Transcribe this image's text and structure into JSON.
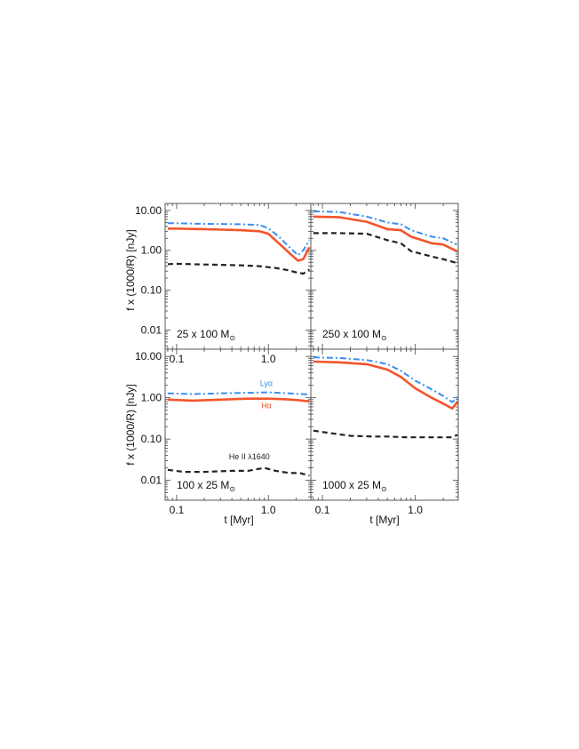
{
  "colors": {
    "lya": "#3a8ef0",
    "ha": "#f2552b",
    "he": "#222222",
    "frame": "#555555"
  },
  "labels": {
    "ylabel": "f x (1000/R) [nJy]",
    "xlabel": "t [Myr]"
  },
  "chart_data": [
    {
      "type": "line",
      "panel_label": "25 x 100 M",
      "panel_label_sub": "⊙",
      "xscale": "log",
      "yscale": "log",
      "xlim": [
        0.075,
        2.9
      ],
      "ylim": [
        0.0033,
        15
      ],
      "yticks": [
        "10.00",
        "1.00",
        "0.10",
        "0.01"
      ],
      "xticks": [
        "0.1",
        "1.0"
      ],
      "series": [
        {
          "name": "Lyα",
          "style": "dashdot",
          "x": [
            0.08,
            0.1,
            0.2,
            0.5,
            0.8,
            1.0,
            1.3,
            1.7,
            2.1,
            2.4,
            2.8
          ],
          "y": [
            4.8,
            4.8,
            4.6,
            4.5,
            4.3,
            3.6,
            2.2,
            1.2,
            0.75,
            1.0,
            1.8
          ]
        },
        {
          "name": "Hα",
          "style": "solid",
          "x": [
            0.08,
            0.1,
            0.2,
            0.5,
            0.8,
            1.0,
            1.3,
            1.7,
            2.1,
            2.4,
            2.8
          ],
          "y": [
            3.5,
            3.5,
            3.4,
            3.2,
            3.0,
            2.6,
            1.5,
            0.85,
            0.55,
            0.6,
            1.2
          ]
        },
        {
          "name": "He II λ1640",
          "style": "dashed",
          "x": [
            0.08,
            0.1,
            0.2,
            0.5,
            0.8,
            1.2,
            1.6,
            2.0,
            2.4,
            2.8
          ],
          "y": [
            0.45,
            0.46,
            0.44,
            0.42,
            0.4,
            0.36,
            0.32,
            0.28,
            0.26,
            0.33
          ]
        }
      ]
    },
    {
      "type": "line",
      "panel_label": "250 x 100 M",
      "panel_label_sub": "⊙",
      "xscale": "log",
      "yscale": "log",
      "xlim": [
        0.075,
        2.9
      ],
      "ylim": [
        0.0033,
        15
      ],
      "yticks": [],
      "xticks": [],
      "series": [
        {
          "name": "Lyα",
          "style": "dashdot",
          "x": [
            0.08,
            0.15,
            0.3,
            0.5,
            0.7,
            0.9,
            1.5,
            2.0,
            2.8
          ],
          "y": [
            9.5,
            9.2,
            7.0,
            5.0,
            4.5,
            3.2,
            2.2,
            2.0,
            1.4
          ]
        },
        {
          "name": "Hα",
          "style": "solid",
          "x": [
            0.08,
            0.15,
            0.3,
            0.5,
            0.7,
            0.9,
            1.5,
            2.0,
            2.8
          ],
          "y": [
            7.0,
            6.8,
            5.2,
            3.4,
            3.2,
            2.2,
            1.5,
            1.4,
            0.95
          ]
        },
        {
          "name": "He II λ1640",
          "style": "dashed",
          "x": [
            0.08,
            0.15,
            0.3,
            0.5,
            0.7,
            0.9,
            1.5,
            2.0,
            2.8
          ],
          "y": [
            2.7,
            2.7,
            2.6,
            1.8,
            1.5,
            0.95,
            0.7,
            0.6,
            0.48
          ]
        }
      ]
    },
    {
      "type": "line",
      "panel_label": "100 x 25 M",
      "panel_label_sub": "⊙",
      "xscale": "log",
      "yscale": "log",
      "xlim": [
        0.075,
        2.9
      ],
      "ylim": [
        0.0033,
        15
      ],
      "yticks": [
        "10.00",
        "1.00",
        "0.10",
        "0.01"
      ],
      "xticks": [
        "0.1",
        "1.0"
      ],
      "series": [
        {
          "name": "Lyα",
          "style": "dashdot",
          "x": [
            0.08,
            0.15,
            0.3,
            0.6,
            1.0,
            1.5,
            2.0,
            2.8
          ],
          "y": [
            1.28,
            1.23,
            1.28,
            1.32,
            1.35,
            1.3,
            1.25,
            1.2
          ]
        },
        {
          "name": "Hα",
          "style": "solid",
          "x": [
            0.08,
            0.15,
            0.3,
            0.6,
            1.0,
            1.5,
            2.0,
            2.8
          ],
          "y": [
            0.9,
            0.85,
            0.9,
            0.95,
            0.95,
            0.92,
            0.88,
            0.82
          ]
        },
        {
          "name": "He II λ1640",
          "style": "dashed",
          "x": [
            0.08,
            0.12,
            0.2,
            0.4,
            0.6,
            0.9,
            1.2,
            1.7,
            2.2,
            2.8
          ],
          "y": [
            0.018,
            0.016,
            0.016,
            0.017,
            0.017,
            0.02,
            0.017,
            0.015,
            0.015,
            0.013
          ]
        }
      ],
      "annotations": [
        {
          "text": "Lyα",
          "series": "Lyα",
          "x": 0.95,
          "y": 1.9
        },
        {
          "text": "Hα",
          "series": "Hα",
          "x": 0.95,
          "y": 0.55
        },
        {
          "text": "He II λ1640",
          "series": "He II λ1640",
          "x": 0.62,
          "y": 0.032
        }
      ]
    },
    {
      "type": "line",
      "panel_label": "1000 x 25 M",
      "panel_label_sub": "⊙",
      "xscale": "log",
      "yscale": "log",
      "xlim": [
        0.075,
        2.9
      ],
      "ylim": [
        0.0033,
        15
      ],
      "yticks": [],
      "xticks": [
        "0.1",
        "1.0"
      ],
      "series": [
        {
          "name": "Lyα",
          "style": "dashdot",
          "x": [
            0.08,
            0.15,
            0.3,
            0.5,
            0.7,
            1.0,
            1.5,
            2.0,
            2.5,
            2.85
          ],
          "y": [
            9.5,
            9.2,
            8.2,
            6.5,
            4.5,
            2.6,
            1.6,
            1.1,
            0.78,
            1.05
          ]
        },
        {
          "name": "Hα",
          "style": "solid",
          "x": [
            0.08,
            0.15,
            0.3,
            0.5,
            0.7,
            1.0,
            1.5,
            2.0,
            2.5,
            2.85
          ],
          "y": [
            7.5,
            7.2,
            6.5,
            4.8,
            3.2,
            1.7,
            1.0,
            0.72,
            0.55,
            0.8
          ]
        },
        {
          "name": "He II λ1640",
          "style": "dashed",
          "x": [
            0.08,
            0.12,
            0.2,
            0.35,
            0.5,
            0.8,
            1.2,
            1.8,
            2.4,
            2.85
          ],
          "y": [
            0.16,
            0.14,
            0.12,
            0.115,
            0.115,
            0.11,
            0.11,
            0.11,
            0.11,
            0.125
          ]
        }
      ]
    }
  ]
}
